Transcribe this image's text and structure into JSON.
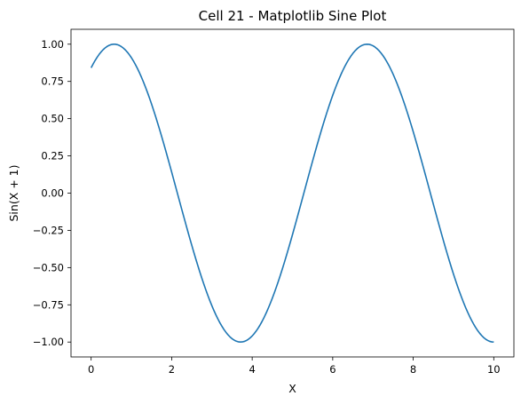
{
  "chart_data": {
    "type": "line",
    "title": "Cell 21 - Matplotlib Sine Plot",
    "xlabel": "X",
    "ylabel": "Sin(X + 1)",
    "xlim": [
      -0.5,
      10.5
    ],
    "ylim": [
      -1.1,
      1.1
    ],
    "grid": false,
    "x_ticks": [
      0,
      2,
      4,
      6,
      8,
      10
    ],
    "x_tick_labels": [
      "0",
      "2",
      "4",
      "6",
      "8",
      "10"
    ],
    "y_ticks": [
      1.0,
      0.75,
      0.5,
      0.25,
      0.0,
      -0.25,
      -0.5,
      -0.75,
      -1.0
    ],
    "y_tick_labels": [
      "1.00",
      "0.75",
      "0.50",
      "0.25",
      "0.00",
      "−0.25",
      "−0.50",
      "−0.75",
      "−1.00"
    ],
    "line_color": "#1f77b4",
    "series": [
      {
        "x": [
          0,
          0.5,
          1,
          1.5,
          2,
          2.5,
          3,
          3.5,
          4,
          4.5,
          5,
          5.5,
          6,
          6.5,
          7,
          7.5,
          8,
          8.5,
          9,
          9.5,
          10
        ],
        "values": [
          0.8415,
          0.9975,
          0.9093,
          0.5985,
          0.1411,
          -0.3508,
          -0.7568,
          -0.9775,
          -0.9589,
          -0.7055,
          -0.2794,
          0.2151,
          0.657,
          0.938,
          0.9894,
          0.7985,
          0.4121,
          -0.0752,
          -0.544,
          -0.88,
          -1.0
        ]
      }
    ]
  }
}
